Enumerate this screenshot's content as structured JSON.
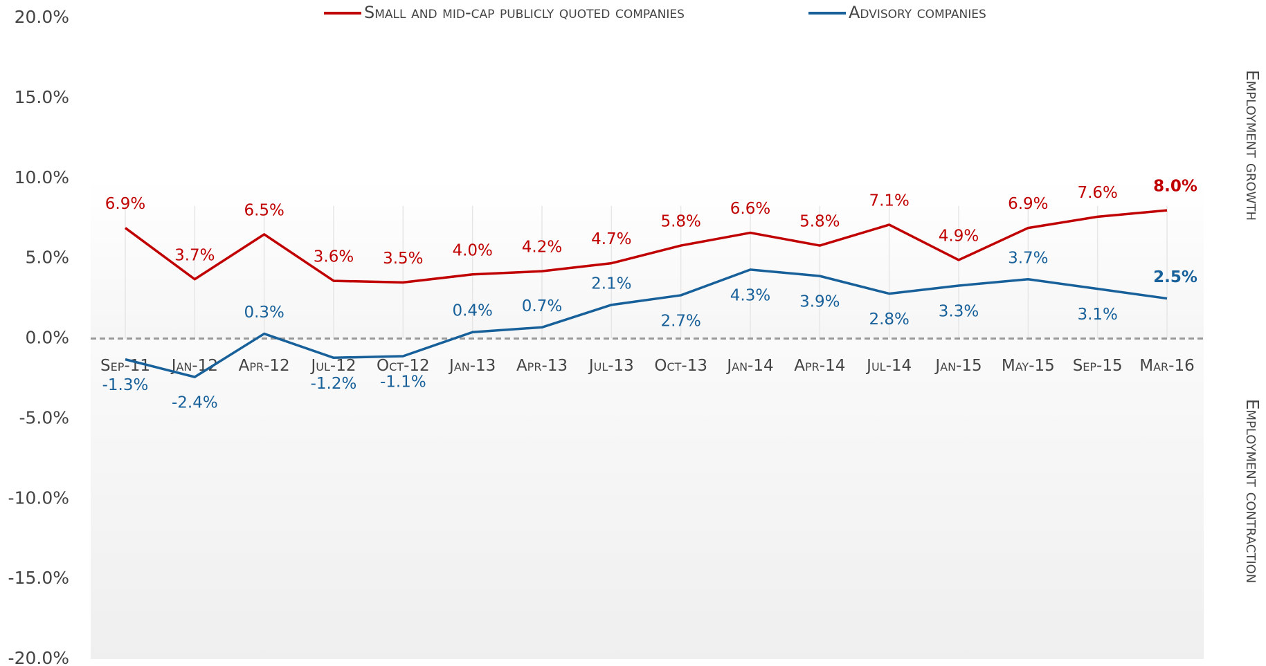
{
  "chart_data": {
    "type": "line",
    "categories": [
      "Sep-11",
      "Jan-12",
      "Apr-12",
      "Jul-12",
      "Oct-12",
      "Jan-13",
      "Apr-13",
      "Jul-13",
      "Oct-13",
      "Jan-14",
      "Apr-14",
      "Jul-14",
      "Jan-15",
      "May-15",
      "Sep-15",
      "Mar-16"
    ],
    "series": [
      {
        "name": "Small and mid-cap publicly quoted companies",
        "color": "#c00000",
        "values": [
          6.9,
          3.7,
          6.5,
          3.6,
          3.5,
          4.0,
          4.2,
          4.7,
          5.8,
          6.6,
          5.8,
          7.1,
          4.9,
          6.9,
          7.6,
          8.0
        ],
        "value_labels": [
          "6.9%",
          "3.7%",
          "6.5%",
          "3.6%",
          "3.5%",
          "4.0%",
          "4.2%",
          "4.7%",
          "5.8%",
          "6.6%",
          "5.8%",
          "7.1%",
          "4.9%",
          "6.9%",
          "7.6%",
          "8.0%"
        ]
      },
      {
        "name": "Advisory companies",
        "color": "#17609a",
        "values": [
          -1.3,
          -2.4,
          0.3,
          -1.2,
          -1.1,
          0.4,
          0.7,
          2.1,
          2.7,
          4.3,
          3.9,
          2.8,
          3.3,
          3.7,
          3.1,
          2.5
        ],
        "value_labels": [
          "-1.3%",
          "-2.4%",
          "0.3%",
          "-1.2%",
          "-1.1%",
          "0.4%",
          "0.7%",
          "2.1%",
          "2.7%",
          "4.3%",
          "3.9%",
          "2.8%",
          "3.3%",
          "3.7%",
          "3.1%",
          "2.5%"
        ]
      }
    ],
    "ylim": [
      -20,
      20
    ],
    "yticks": [
      {
        "value": 20,
        "label": "20.0%"
      },
      {
        "value": 15,
        "label": "15.0%"
      },
      {
        "value": 10,
        "label": "10.0%"
      },
      {
        "value": 5,
        "label": "5.0%"
      },
      {
        "value": 0,
        "label": "0.0%"
      },
      {
        "value": -5,
        "label": "-5.0%"
      },
      {
        "value": -10,
        "label": "-10.0%"
      },
      {
        "value": -15,
        "label": "-15.0%"
      },
      {
        "value": -20,
        "label": "-20.0%"
      }
    ],
    "y_right_labels": [
      "Employment growth",
      "Employment contraction"
    ],
    "legend": "top"
  }
}
